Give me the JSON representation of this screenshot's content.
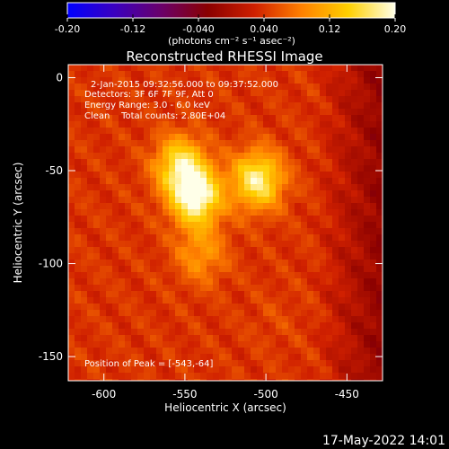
{
  "colorbar": {
    "tick_labels": [
      "-0.20",
      "-0.12",
      "-0.040",
      "0.040",
      "0.12",
      "0.20"
    ],
    "tick_values": [
      -0.2,
      -0.12,
      -0.04,
      0.04,
      0.12,
      0.2
    ],
    "range": [
      -0.2,
      0.2
    ],
    "units_label": "(photons cm⁻² s⁻¹ asec⁻²)",
    "colors": [
      "#0000ff",
      "#3a00c0",
      "#6a006a",
      "#8a0000",
      "#d02000",
      "#ff8000",
      "#ffd000",
      "#ffffe8"
    ]
  },
  "annotations": {
    "time_range": "2-Jan-2015 09:32:56.000 to 09:37:52.000",
    "detectors": "Detectors: 3F 6F 7F 9F, Att 0",
    "energy": "Energy Range: 3.0 - 6.0 keV",
    "clean": "Clean    Total counts: 2.80E+04",
    "peak": "Position of Peak = [-543,-64]"
  },
  "footer": {
    "timestamp": "17-May-2022 14:01"
  },
  "chart_data": {
    "type": "heatmap",
    "title": "Reconstructed RHESSI Image",
    "xlabel": "Heliocentric X (arcsec)",
    "ylabel": "Heliocentric Y (arcsec)",
    "xlim": [
      -622,
      -428
    ],
    "ylim": [
      -163,
      7
    ],
    "x_ticks": [
      -600,
      -550,
      -500,
      -450
    ],
    "y_ticks": [
      0,
      -50,
      -100,
      -150
    ],
    "x_tick_labels": [
      "-600",
      "-550",
      "-500",
      "-450"
    ],
    "y_tick_labels": [
      "0",
      "-50",
      "-100",
      "-150"
    ],
    "peak": [
      -543,
      -64
    ],
    "sources": [
      {
        "x": -543,
        "y": -64,
        "peak": 0.2
      },
      {
        "x": -553,
        "y": -47,
        "peak": 0.16
      },
      {
        "x": -505,
        "y": -55,
        "peak": 0.18
      },
      {
        "x": -540,
        "y": -95,
        "peak": 0.1
      },
      {
        "x": -495,
        "y": -130,
        "peak": 0.05
      }
    ],
    "background_level": 0.04
  }
}
